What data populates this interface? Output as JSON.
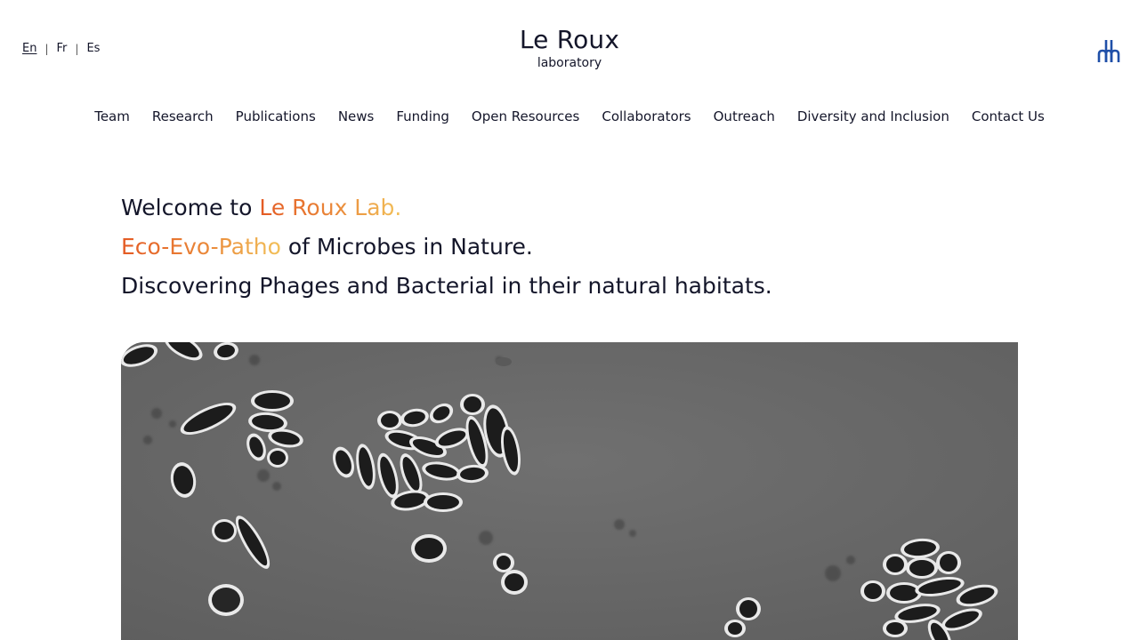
{
  "languages": [
    {
      "label": "En",
      "active": true
    },
    {
      "label": "Fr",
      "active": false
    },
    {
      "label": "Es",
      "active": false
    }
  ],
  "language_separator": "|",
  "brand": {
    "name": "Le Roux",
    "subtitle": "laboratory"
  },
  "logo_icon": "institution-logo-icon",
  "nav": {
    "items": [
      {
        "label": "Team"
      },
      {
        "label": "Research"
      },
      {
        "label": "Publications"
      },
      {
        "label": "News"
      },
      {
        "label": "Funding"
      },
      {
        "label": "Open Resources"
      },
      {
        "label": "Collaborators"
      },
      {
        "label": "Outreach"
      },
      {
        "label": "Diversity and Inclusion"
      },
      {
        "label": "Contact Us"
      }
    ]
  },
  "hero": {
    "line1_prefix": "Welcome to ",
    "line1_highlight": "Le Roux Lab.",
    "line2_highlight": "Eco-Evo-Patho",
    "line2_suffix": " of Microbes in Nature.",
    "line3": "Discovering Phages and Bacterial in their natural habitats."
  },
  "colors": {
    "text": "#14162a",
    "accent_start": "#e45a24",
    "accent_end": "#f2c15a",
    "logo": "#1f4fa8"
  },
  "image": {
    "description_icon": "microscope-image"
  }
}
